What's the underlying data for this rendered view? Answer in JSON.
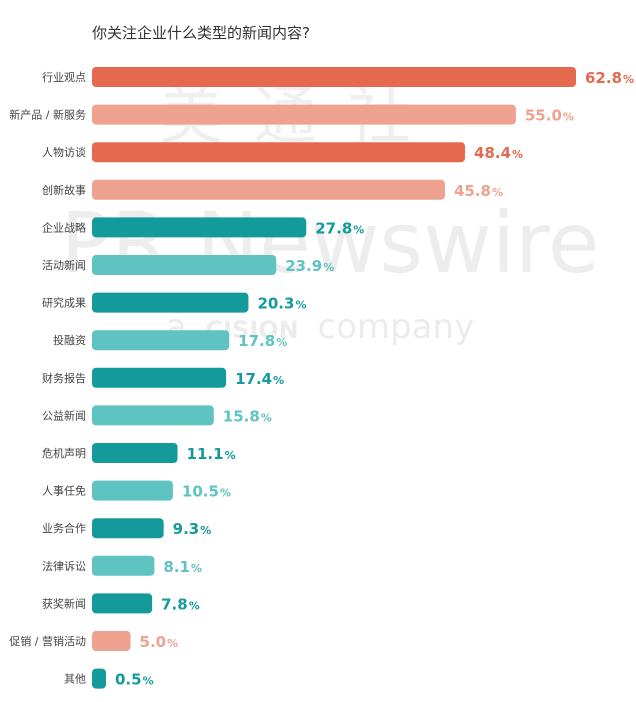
{
  "chart_data": {
    "type": "bar",
    "orientation": "horizontal",
    "title": "你关注企业什么类型的新闻内容?",
    "categories": [
      "行业观点",
      "新产品 / 新服务",
      "人物访谈",
      "创新故事",
      "企业战略",
      "活动新闻",
      "研究成果",
      "投融资",
      "财务报告",
      "公益新闻",
      "危机声明",
      "人事任免",
      "业务合作",
      "法律诉讼",
      "获奖新闻",
      "促销 / 营销活动",
      "其他"
    ],
    "values": [
      62.8,
      55.0,
      48.4,
      45.8,
      27.8,
      23.9,
      20.3,
      17.8,
      17.4,
      15.8,
      11.1,
      10.5,
      9.3,
      8.1,
      7.8,
      5.0,
      0.5
    ],
    "value_labels": [
      "62.8",
      "55.0",
      "48.4",
      "45.8",
      "27.8",
      "23.9",
      "20.3",
      "17.8",
      "17.4",
      "15.8",
      "11.1",
      "10.5",
      "9.3",
      "8.1",
      "7.8",
      "5.0",
      "0.5"
    ],
    "value_suffix": "%",
    "bar_colors": [
      "#e5694f",
      "#f0a290",
      "#e5694f",
      "#f0a290",
      "#159a9c",
      "#5ec3c1",
      "#159a9c",
      "#5ec3c1",
      "#159a9c",
      "#5ec3c1",
      "#159a9c",
      "#5ec3c1",
      "#159a9c",
      "#5ec3c1",
      "#159a9c",
      "#f0a290",
      "#159a9c"
    ],
    "xlim": [
      0,
      62.8
    ],
    "grid": false,
    "legend": "none"
  },
  "watermark": {
    "line1": "美通社",
    "line2": "PR Newswire",
    "line3_prefix": "a",
    "line3_brand": "CISION",
    "line3_suffix": "company"
  }
}
